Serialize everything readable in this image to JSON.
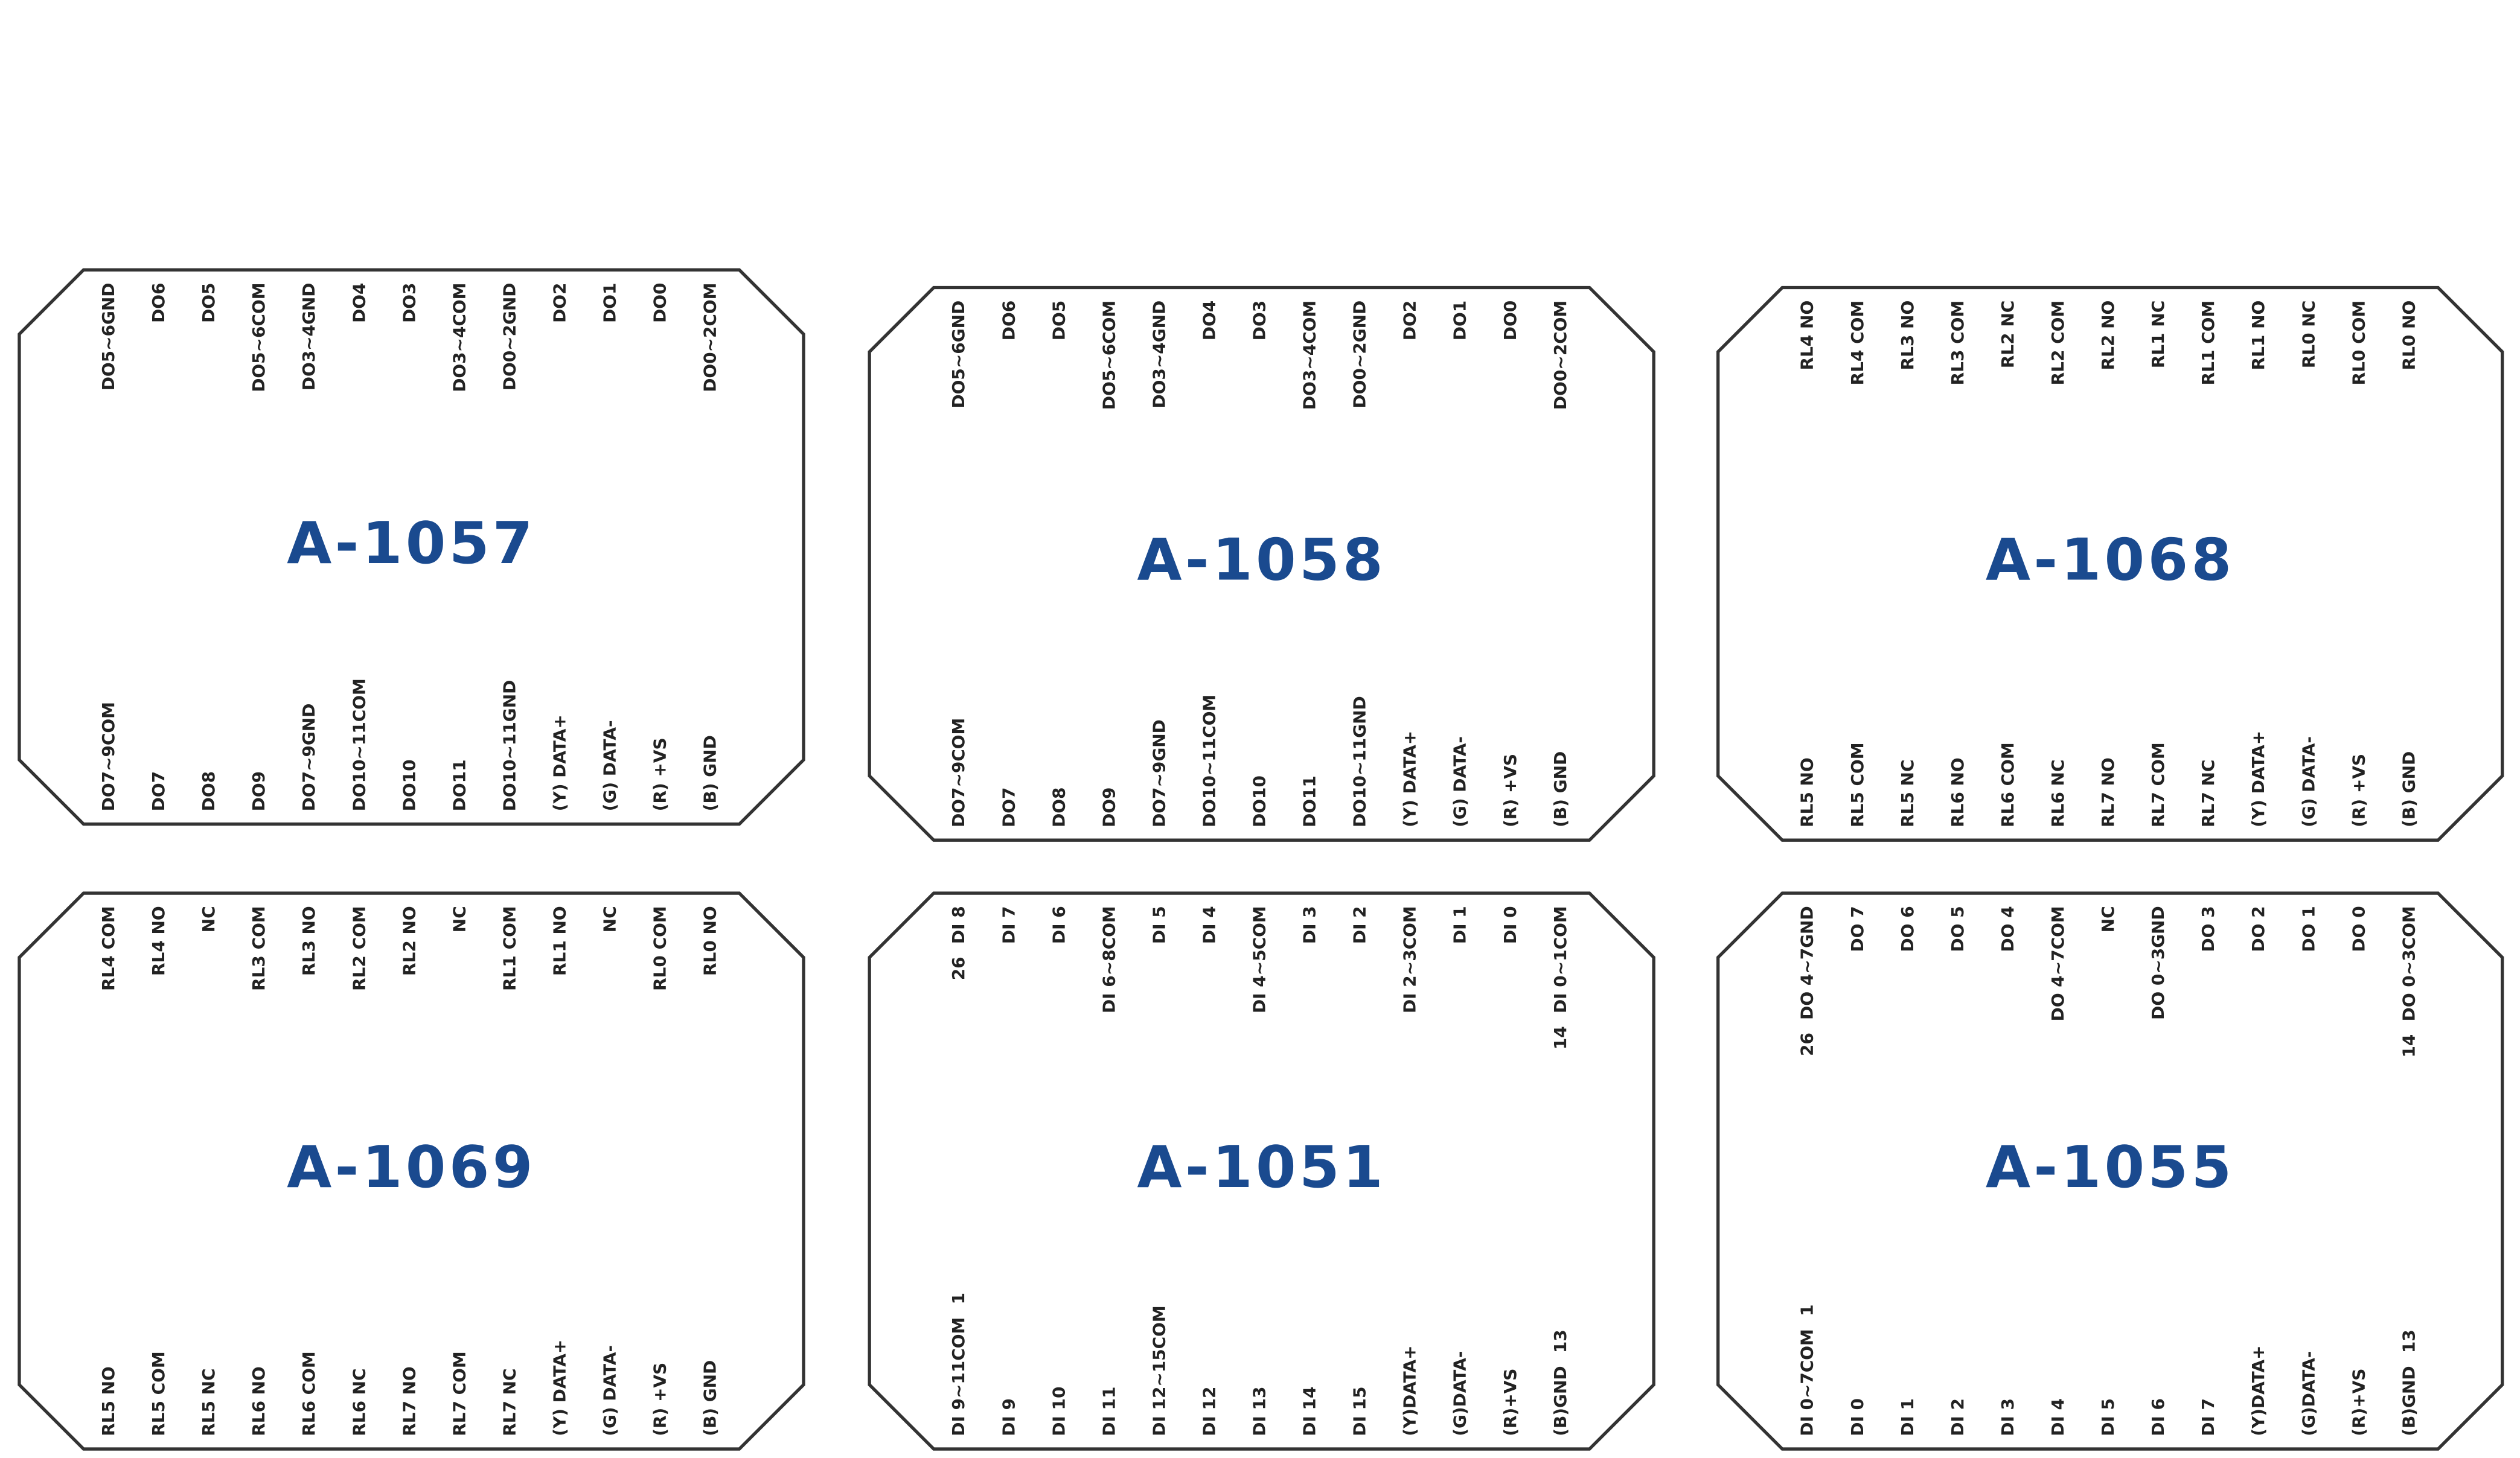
{
  "modules": [
    {
      "title": "A-1057",
      "top": [
        "DO5~6GND",
        "DO6",
        "DO5",
        "DO5~6COM",
        "DO3~4GND",
        "DO4",
        "DO3",
        "DO3~4COM",
        "DO0~2GND",
        "DO2",
        "DO1",
        "DO0",
        "DO0~2COM"
      ],
      "bottom": [
        "DO7~9COM",
        "DO7",
        "DO8",
        "DO9",
        "DO7~9GND",
        "DO10~11COM",
        "DO10",
        "DO11",
        "DO10~11GND",
        "(Y) DATA+",
        "(G) DATA-",
        "(R) +VS",
        "(B) GND"
      ]
    },
    {
      "title": "A-1058",
      "top": [
        "DO5~6GND",
        "DO6",
        "DO5",
        "DO5~6COM",
        "DO3~4GND",
        "DO4",
        "DO3",
        "DO3~4COM",
        "DO0~2GND",
        "DO2",
        "DO1",
        "DO0",
        "DO0~2COM"
      ],
      "bottom": [
        "DO7~9COM",
        "DO7",
        "DO8",
        "DO9",
        "DO7~9GND",
        "DO10~11COM",
        "DO10",
        "DO11",
        "DO10~11GND",
        "(Y) DATA+",
        "(G) DATA-",
        "(R) +VS",
        "(B) GND"
      ]
    },
    {
      "title": "A-1068",
      "top": [
        "RL4 NO",
        "RL4 COM",
        "RL3 NO",
        "RL3 COM",
        "RL2 NC",
        "RL2 COM",
        "RL2 NO",
        "RL1 NC",
        "RL1 COM",
        "RL1 NO",
        "RL0 NC",
        "RL0 COM",
        "RL0 NO"
      ],
      "bottom": [
        "RL5 NO",
        "RL5 COM",
        "RL5 NC",
        "RL6 NO",
        "RL6 COM",
        "RL6 NC",
        "RL7 NO",
        "RL7 COM",
        "RL7 NC",
        "(Y) DATA+",
        "(G) DATA-",
        "(R) +VS",
        "(B) GND"
      ]
    },
    {
      "title": "A-1069",
      "top": [
        "RL4 COM",
        "RL4 NO",
        "NC",
        "RL3 COM",
        "RL3 NO",
        "RL2 COM",
        "RL2 NO",
        "NC",
        "RL1 COM",
        "RL1 NO",
        "NC",
        "RL0 COM",
        "RL0 NO"
      ],
      "bottom": [
        "RL5 NO",
        "RL5 COM",
        "RL5 NC",
        "RL6 NO",
        "RL6 COM",
        "RL6 NC",
        "RL7 NO",
        "RL7 COM",
        "RL7 NC",
        "(Y) DATA+",
        "(G) DATA-",
        "(R) +VS",
        "(B) GND"
      ]
    },
    {
      "title": "A-1051",
      "top": [
        "DI 8",
        "DI 7",
        "DI 6",
        "DI 6~8COM",
        "DI 5",
        "DI 4",
        "DI 4~5COM",
        "DI 3",
        "DI 2",
        "DI 2~3COM",
        "DI 1",
        "DI 0",
        "DI 0~1COM"
      ],
      "bottom": [
        "DI 9~11COM",
        "DI 9",
        "DI 10",
        "DI 11",
        "DI 12~15COM",
        "DI 12",
        "DI 13",
        "DI 14",
        "DI 15",
        "(Y)DATA+",
        "(G)DATA-",
        "(R)+VS",
        "(B)GND"
      ],
      "pins": {
        "top_left": "26",
        "top_right": "14",
        "bottom_left": "1",
        "bottom_right": "13"
      }
    },
    {
      "title": "A-1055",
      "top": [
        "DO 4~7GND",
        "DO 7",
        "DO 6",
        "DO 5",
        "DO 4",
        "DO 4~7COM",
        "NC",
        "DO 0~3GND",
        "DO 3",
        "DO 2",
        "DO 1",
        "DO 0",
        "DO 0~3COM"
      ],
      "bottom": [
        "DI 0~7COM",
        "DI 0",
        "DI 1",
        "DI 2",
        "DI 3",
        "DI 4",
        "DI 5",
        "DI 6",
        "DI 7",
        "(Y)DATA+",
        "(G)DATA-",
        "(R)+VS",
        "(B)GND"
      ],
      "pins": {
        "top_left": "26",
        "top_right": "14",
        "bottom_left": "1",
        "bottom_right": "13"
      }
    }
  ]
}
